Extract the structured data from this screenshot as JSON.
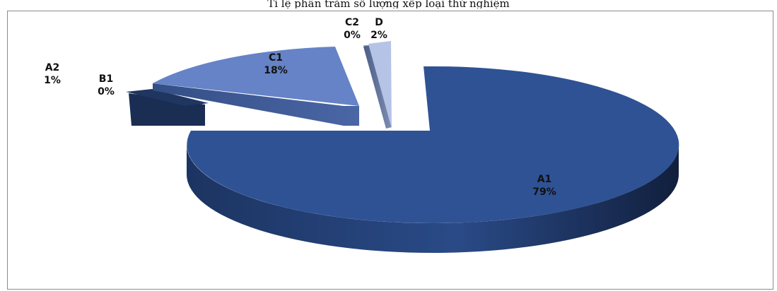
{
  "caption": "Tỉ lệ phần trăm số lượng xếp loại thử nghiệm",
  "chart_data": {
    "type": "pie",
    "categories": [
      "A1",
      "A2",
      "B1",
      "C1",
      "C2",
      "D"
    ],
    "values": [
      79,
      1,
      0,
      18,
      0,
      2
    ],
    "percent_labels": [
      "79%",
      "1%",
      "0%",
      "18%",
      "0%",
      "2%"
    ],
    "exploded": true,
    "three_d": true,
    "legend": "none",
    "colors": {
      "A1": "#2f5294",
      "A2": "#1f3661",
      "B1": "#1a2d52",
      "C1": "#6583c6",
      "C2": "#8aa0d6",
      "D": "#b5c3e6"
    }
  }
}
